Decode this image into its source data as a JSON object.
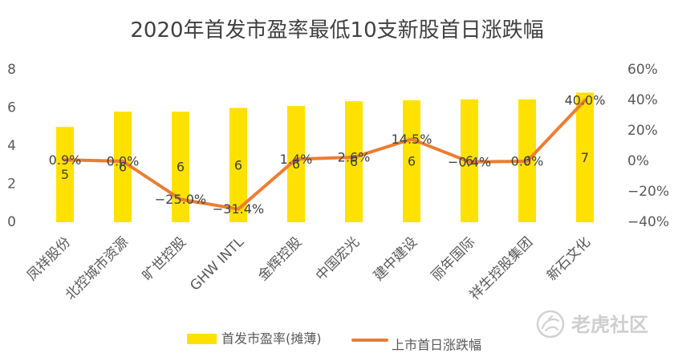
{
  "chart_data": {
    "type": "bar",
    "title": "2020年首发市盈率最低10支新股首日涨跌幅",
    "categories": [
      "凤祥股份",
      "北控城市资源",
      "旷世控股",
      "GHW INTL",
      "金辉控股",
      "中国宏光",
      "建中建设",
      "丽年国际",
      "祥生控股集团",
      "新石文化"
    ],
    "series": [
      {
        "name": "首发市盈率(摊薄)",
        "type": "bar",
        "axis": "left",
        "color": "#FFE100",
        "values": [
          5.0,
          5.8,
          5.8,
          6.0,
          6.1,
          6.35,
          6.4,
          6.45,
          6.45,
          6.8
        ],
        "labels": [
          "5",
          "6",
          "6",
          "6",
          "6",
          "6",
          "6",
          "6",
          "6",
          "7"
        ]
      },
      {
        "name": "上市首日涨跌幅",
        "type": "line",
        "axis": "right",
        "unit": "%",
        "color": "#ED7D31",
        "values": [
          0.9,
          0.0,
          -25.0,
          -31.4,
          1.4,
          2.6,
          14.5,
          -0.4,
          0.0,
          40.0
        ],
        "labels": [
          "0.9%",
          "0.0%",
          "−25.0%",
          "−31.4%",
          "1.4%",
          "2.6%",
          "14.5%",
          "−0.4%",
          "0.0%",
          "40.0%"
        ]
      }
    ],
    "y_left": {
      "range": [
        0,
        8
      ],
      "ticks": [
        0,
        2,
        4,
        6,
        8
      ],
      "tick_labels": [
        "0",
        "2",
        "4",
        "6",
        "8"
      ]
    },
    "y_right": {
      "range": [
        -40,
        60
      ],
      "ticks": [
        -40,
        -20,
        0,
        20,
        40,
        60
      ],
      "tick_labels": [
        "−40%",
        "−20%",
        "0%",
        "20%",
        "40%",
        "60%"
      ]
    },
    "xlabel": "",
    "grid": false,
    "legend": "bottom"
  },
  "watermark": {
    "text": "老虎社区",
    "icon": "tiger-logo-icon",
    "color": "#cfcfcf"
  }
}
